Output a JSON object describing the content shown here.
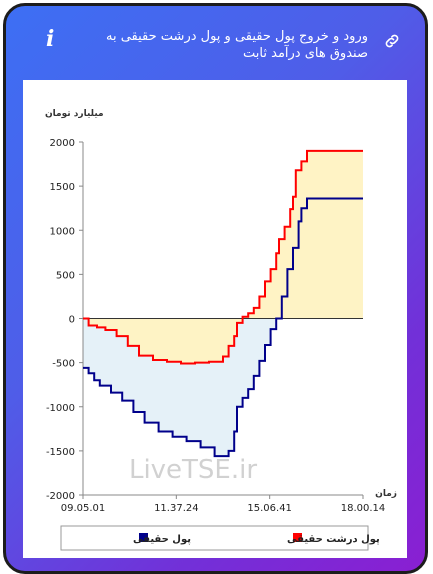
{
  "header": {
    "title": "ورود و خروج پول حقیقی و پول درشت حقیقی به صندوق های درآمد ثابت",
    "info_icon": "info-icon",
    "link_icon": "link-icon"
  },
  "chart_data": {
    "type": "area",
    "ylabel": "میلیارد تومان",
    "xlabel": "زمان",
    "ylim": [
      -2000,
      2000
    ],
    "yticks": [
      -2000,
      -1500,
      -1000,
      -500,
      0,
      500,
      1000,
      1500,
      2000
    ],
    "xticks": [
      "09.05.01",
      "11.37.24",
      "15.06.41",
      "18.00.14"
    ],
    "watermark": "LiveTSE.ir",
    "legend": [
      {
        "label": "پول درشت حقیقی",
        "color": "#ff0000"
      },
      {
        "label": "پول حقیقی",
        "color": "#00008b"
      }
    ],
    "series": [
      {
        "name": "پول درشت حقیقی",
        "color": "#ff0000",
        "x": [
          0,
          0.02,
          0.05,
          0.08,
          0.12,
          0.16,
          0.2,
          0.25,
          0.3,
          0.35,
          0.4,
          0.45,
          0.5,
          0.52,
          0.54,
          0.55,
          0.57,
          0.59,
          0.61,
          0.63,
          0.65,
          0.67,
          0.69,
          0.7,
          0.72,
          0.74,
          0.75,
          0.76,
          0.78,
          0.8,
          1.0
        ],
        "y": [
          0,
          -80,
          -100,
          -130,
          -200,
          -310,
          -420,
          -470,
          -490,
          -510,
          -500,
          -490,
          -430,
          -310,
          -200,
          -50,
          20,
          60,
          120,
          250,
          420,
          560,
          740,
          900,
          1040,
          1240,
          1380,
          1680,
          1780,
          1900,
          1900
        ]
      },
      {
        "name": "پول حقیقی",
        "color": "#00008b",
        "x": [
          0,
          0.02,
          0.04,
          0.06,
          0.1,
          0.14,
          0.18,
          0.22,
          0.27,
          0.32,
          0.37,
          0.42,
          0.47,
          0.5,
          0.52,
          0.54,
          0.55,
          0.57,
          0.59,
          0.61,
          0.63,
          0.65,
          0.67,
          0.69,
          0.71,
          0.73,
          0.75,
          0.77,
          0.78,
          0.8,
          1.0
        ],
        "y": [
          -560,
          -620,
          -700,
          -760,
          -840,
          -930,
          -1060,
          -1180,
          -1280,
          -1340,
          -1390,
          -1460,
          -1560,
          -1560,
          -1500,
          -1280,
          -1000,
          -900,
          -800,
          -650,
          -480,
          -300,
          -120,
          0,
          250,
          560,
          800,
          1100,
          1250,
          1360,
          1360
        ]
      }
    ]
  }
}
